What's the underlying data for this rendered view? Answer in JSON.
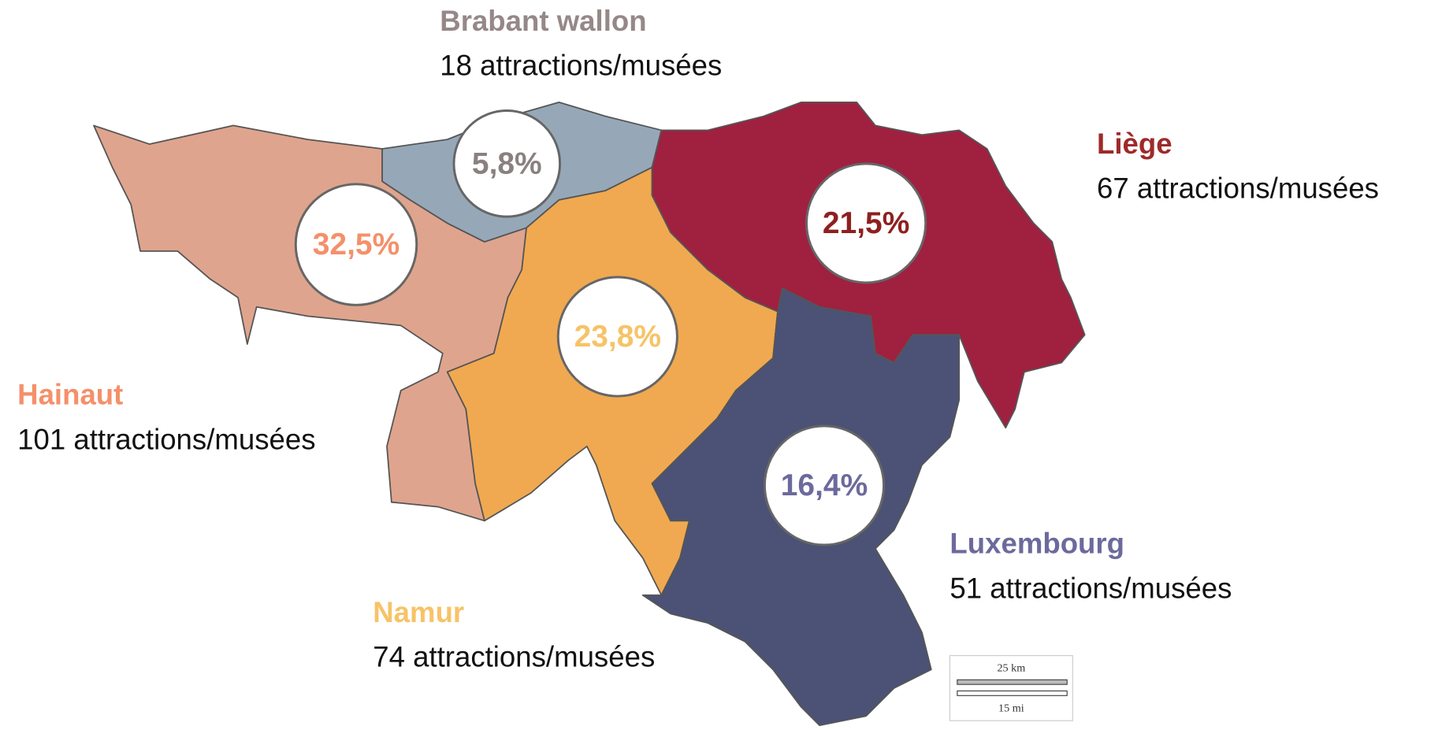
{
  "regions": [
    {
      "name": "Hainaut",
      "count": "101 attractions/musées",
      "share": "32,5%"
    },
    {
      "name": "Brabant wallon",
      "count": "18 attractions/musées",
      "share": "5,8%"
    },
    {
      "name": "Namur",
      "count": "74 attractions/musées",
      "share": "23,8%"
    },
    {
      "name": "Liège",
      "count": "67 attractions/musées",
      "share": "21,5%"
    },
    {
      "name": "Luxembourg",
      "count": "51 attractions/musées",
      "share": "16,4%"
    }
  ],
  "scale_bar": {
    "km": "25 km",
    "mi": "15 mi"
  }
}
